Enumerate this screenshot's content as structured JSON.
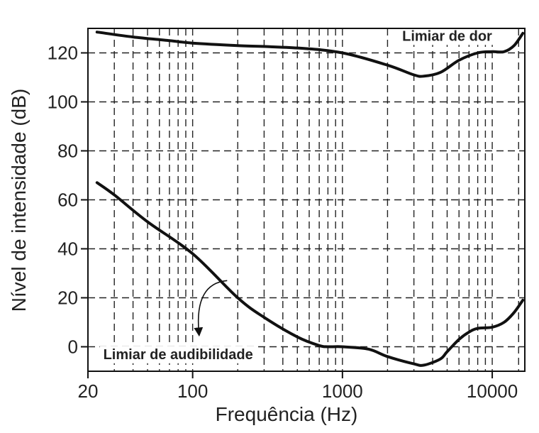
{
  "chart_data": {
    "type": "line",
    "title": "",
    "xlabel": "Frequência (Hz)",
    "ylabel": "Nível de intensidade (dB)",
    "x_scale": "log",
    "xlim": [
      20,
      16500
    ],
    "ylim": [
      -10,
      130
    ],
    "grid": true,
    "x_ticks": [
      {
        "value": 20,
        "label": "20"
      },
      {
        "value": 100,
        "label": "100"
      },
      {
        "value": 1000,
        "label": "1000"
      },
      {
        "value": 10000,
        "label": "10000"
      }
    ],
    "y_ticks": [
      {
        "value": 0,
        "label": "0"
      },
      {
        "value": 20,
        "label": "20"
      },
      {
        "value": 40,
        "label": "40"
      },
      {
        "value": 60,
        "label": "60"
      },
      {
        "value": 80,
        "label": "80"
      },
      {
        "value": 100,
        "label": "100"
      },
      {
        "value": 120,
        "label": "120"
      }
    ],
    "x_gridlines": [
      30,
      40,
      50,
      60,
      70,
      80,
      90,
      100,
      200,
      300,
      400,
      500,
      600,
      700,
      800,
      900,
      1000,
      2000,
      3000,
      4000,
      5000,
      6000,
      7000,
      8000,
      9000,
      10000,
      15000
    ],
    "y_gridlines": [
      0,
      20,
      40,
      60,
      80,
      100,
      120
    ],
    "series": [
      {
        "name": "Limiar de dor",
        "x": [
          23,
          40,
          70,
          100,
          200,
          500,
          1000,
          2000,
          3000,
          3500,
          4500,
          6000,
          8000,
          10000,
          12000,
          14000,
          16000
        ],
        "y": [
          128.5,
          126.5,
          125,
          124,
          123,
          122,
          120,
          115,
          111,
          110.5,
          112,
          117,
          120,
          120.5,
          120.5,
          123,
          128
        ]
      },
      {
        "name": "Limiar de audibilidade",
        "x": [
          23,
          30,
          50,
          100,
          200,
          300,
          500,
          700,
          800,
          1000,
          1500,
          2000,
          3000,
          3500,
          4500,
          5000,
          6000,
          7000,
          8000,
          10000,
          12000,
          14000,
          16000
        ],
        "y": [
          67,
          62,
          51,
          38,
          20,
          12,
          4,
          0.5,
          0,
          0,
          -1,
          -4,
          -7,
          -7.5,
          -5,
          -2,
          3,
          6,
          7.5,
          8,
          10,
          14,
          19
        ]
      }
    ],
    "annotations": [
      {
        "text": "Limiar de dor",
        "x": 5000,
        "y": 125
      },
      {
        "text": "Limiar de audibilidade",
        "x": 80,
        "y": -5
      },
      {
        "type": "arrow",
        "from": [
          170,
          27
        ],
        "to": [
          110,
          6
        ]
      }
    ]
  }
}
